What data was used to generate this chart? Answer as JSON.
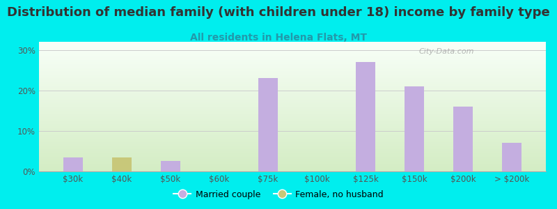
{
  "title": "Distribution of median family (with children under 18) income by family type",
  "subtitle": "All residents in Helena Flats, MT",
  "categories": [
    "$30k",
    "$40k",
    "$50k",
    "$60k",
    "$75k",
    "$100k",
    "$125k",
    "$150k",
    "$200k",
    "> $200k"
  ],
  "married_couple": [
    3.5,
    0,
    2.5,
    0,
    23.0,
    0,
    27.0,
    21.0,
    16.0,
    7.0
  ],
  "female_no_husband": [
    0,
    3.5,
    0,
    0,
    0,
    0,
    0,
    0,
    0,
    0
  ],
  "married_color": "#c4aee0",
  "female_color": "#c8c87a",
  "bar_width": 0.4,
  "ylim": [
    0,
    32
  ],
  "yticks": [
    0,
    10,
    20,
    30
  ],
  "yticklabels": [
    "0%",
    "10%",
    "20%",
    "30%"
  ],
  "outer_bg": "#00eeee",
  "title_color": "#333333",
  "subtitle_color": "#2299aa",
  "title_fontsize": 13,
  "subtitle_fontsize": 10,
  "watermark": "City-Data.com"
}
